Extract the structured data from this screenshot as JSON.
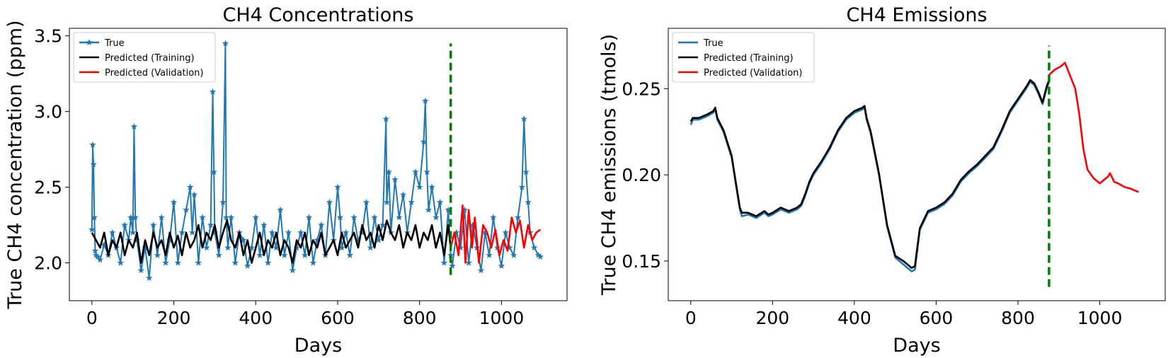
{
  "chart_data": [
    {
      "type": "line",
      "title": "CH4 Concentrations",
      "xlabel": "Days",
      "ylabel": "True CH4 concentration (ppm)",
      "xlim": [
        -55,
        1160
      ],
      "ylim": [
        1.75,
        3.55
      ],
      "xticks": [
        0,
        200,
        400,
        600,
        800,
        1000
      ],
      "yticks": [
        2.0,
        2.5,
        3.0,
        3.5
      ],
      "ytick_labels": [
        "2.0",
        "2.5",
        "3.0",
        "3.5"
      ],
      "legend_position": "upper-left",
      "split_day": 876,
      "split_line": {
        "y_from": 1.92,
        "y_to": 3.45,
        "color": "#007f00"
      },
      "series": [
        {
          "name": "True",
          "color": "#1f77b4",
          "marker": "star",
          "x": [
            0,
            2,
            4,
            6,
            8,
            10,
            14,
            20,
            30,
            40,
            50,
            60,
            70,
            80,
            90,
            95,
            100,
            103,
            106,
            110,
            120,
            130,
            140,
            150,
            160,
            170,
            180,
            190,
            200,
            210,
            220,
            230,
            240,
            245,
            250,
            260,
            270,
            280,
            290,
            295,
            298,
            300,
            310,
            320,
            326,
            328,
            332,
            340,
            350,
            360,
            370,
            380,
            390,
            400,
            410,
            420,
            430,
            440,
            450,
            460,
            470,
            480,
            490,
            500,
            510,
            520,
            530,
            540,
            550,
            560,
            570,
            580,
            590,
            600,
            606,
            610,
            620,
            630,
            640,
            650,
            660,
            670,
            680,
            690,
            700,
            710,
            718,
            720,
            725,
            730,
            740,
            750,
            760,
            770,
            780,
            790,
            800,
            810,
            814,
            818,
            822,
            830,
            840,
            850,
            860,
            870,
            876,
            880,
            890,
            900,
            910,
            920,
            930,
            940,
            950,
            960,
            970,
            980,
            990,
            1000,
            1010,
            1020,
            1030,
            1040,
            1050,
            1055,
            1060,
            1065,
            1070,
            1080,
            1090,
            1095
          ],
          "y": [
            2.22,
            2.78,
            2.65,
            2.3,
            2.08,
            2.05,
            2.04,
            2.02,
            2.12,
            2.05,
            2.2,
            2.1,
            2.0,
            2.25,
            2.15,
            2.3,
            2.2,
            2.9,
            2.3,
            2.15,
            1.95,
            2.1,
            1.9,
            2.25,
            2.05,
            2.3,
            2.0,
            2.15,
            2.4,
            2.0,
            2.2,
            2.35,
            2.5,
            2.2,
            2.45,
            2.0,
            2.3,
            2.1,
            2.25,
            3.13,
            2.6,
            2.2,
            2.05,
            2.4,
            3.45,
            2.3,
            2.1,
            2.3,
            2.0,
            2.2,
            2.15,
            1.98,
            2.1,
            2.3,
            2.05,
            2.25,
            2.0,
            2.2,
            2.1,
            2.35,
            2.05,
            2.2,
            1.95,
            2.1,
            2.2,
            2.05,
            2.3,
            2.0,
            2.15,
            2.25,
            2.05,
            2.4,
            2.15,
            2.5,
            2.3,
            2.1,
            2.2,
            2.05,
            2.3,
            2.15,
            2.2,
            2.4,
            2.1,
            2.3,
            2.15,
            2.25,
            2.95,
            2.4,
            2.6,
            2.2,
            2.55,
            2.3,
            2.45,
            2.2,
            2.4,
            2.6,
            2.5,
            2.8,
            3.07,
            2.6,
            2.35,
            2.5,
            2.3,
            2.4,
            2.0,
            2.35,
            2.05,
            1.98,
            2.2,
            2.1,
            2.35,
            2.0,
            2.25,
            2.1,
            1.95,
            2.2,
            2.05,
            2.3,
            2.1,
            1.98,
            2.2,
            2.1,
            2.05,
            2.3,
            2.5,
            2.95,
            2.6,
            2.4,
            2.2,
            2.1,
            2.05,
            2.04
          ]
        },
        {
          "name": "Predicted (Training)",
          "color": "#000000",
          "marker": "none",
          "x": [
            0,
            10,
            20,
            30,
            40,
            50,
            60,
            70,
            80,
            90,
            100,
            110,
            120,
            130,
            140,
            150,
            160,
            170,
            180,
            190,
            200,
            210,
            220,
            230,
            240,
            250,
            260,
            270,
            280,
            290,
            300,
            310,
            320,
            330,
            340,
            350,
            360,
            370,
            380,
            390,
            400,
            410,
            420,
            430,
            440,
            450,
            460,
            470,
            480,
            490,
            500,
            510,
            520,
            530,
            540,
            550,
            560,
            570,
            580,
            590,
            600,
            610,
            620,
            630,
            640,
            650,
            660,
            670,
            680,
            690,
            700,
            710,
            720,
            730,
            740,
            750,
            760,
            770,
            780,
            790,
            800,
            810,
            820,
            830,
            840,
            850,
            860,
            870,
            876
          ],
          "y": [
            2.2,
            2.15,
            2.1,
            2.2,
            2.05,
            2.15,
            2.1,
            2.2,
            2.05,
            2.15,
            2.1,
            2.2,
            2.0,
            2.15,
            2.05,
            2.2,
            2.1,
            2.15,
            2.05,
            2.2,
            2.1,
            2.18,
            2.05,
            2.2,
            2.1,
            2.15,
            2.25,
            2.1,
            2.2,
            2.15,
            2.25,
            2.1,
            2.2,
            2.28,
            2.15,
            2.1,
            2.2,
            2.05,
            2.15,
            2.0,
            2.1,
            2.2,
            2.05,
            2.15,
            2.1,
            2.2,
            2.05,
            2.15,
            2.1,
            2.0,
            2.15,
            2.1,
            2.2,
            2.05,
            2.15,
            2.1,
            2.2,
            2.05,
            2.1,
            2.15,
            2.05,
            2.2,
            2.1,
            2.15,
            2.2,
            2.1,
            2.25,
            2.15,
            2.2,
            2.1,
            2.25,
            2.15,
            2.28,
            2.2,
            2.15,
            2.25,
            2.1,
            2.2,
            2.15,
            2.25,
            2.1,
            2.2,
            2.15,
            2.25,
            2.1,
            2.2,
            2.05,
            2.25,
            2.1
          ]
        },
        {
          "name": "Predicted (Validation)",
          "color": "#ff0000",
          "marker": "none",
          "x": [
            876,
            885,
            895,
            905,
            912,
            920,
            928,
            935,
            945,
            955,
            965,
            975,
            985,
            995,
            1005,
            1015,
            1025,
            1035,
            1045,
            1055,
            1065,
            1075,
            1085,
            1095
          ],
          "y": [
            2.1,
            2.2,
            2.05,
            2.38,
            2.0,
            2.35,
            2.1,
            2.3,
            2.0,
            2.25,
            2.2,
            2.1,
            2.22,
            2.05,
            2.15,
            2.08,
            2.3,
            2.2,
            2.28,
            2.1,
            2.25,
            2.15,
            2.2,
            2.22
          ]
        }
      ]
    },
    {
      "type": "line",
      "title": "CH4 Emissions",
      "xlabel": "Days",
      "ylabel": "True CH4 emissions (tmols)",
      "xlim": [
        -55,
        1160
      ],
      "ylim": [
        0.127,
        0.285
      ],
      "xticks": [
        0,
        200,
        400,
        600,
        800,
        1000
      ],
      "yticks": [
        0.15,
        0.2,
        0.25
      ],
      "ytick_labels": [
        "0.15",
        "0.20",
        "0.25"
      ],
      "legend_position": "upper-left",
      "split_day": 876,
      "split_line": {
        "y_from": 0.135,
        "y_to": 0.275,
        "color": "#007f00"
      },
      "series": [
        {
          "name": "True",
          "color": "#1f77b4",
          "marker": "none",
          "x": [
            0,
            5,
            20,
            40,
            55,
            60,
            65,
            80,
            100,
            110,
            120,
            125,
            140,
            160,
            180,
            190,
            200,
            220,
            240,
            260,
            270,
            280,
            290,
            300,
            320,
            340,
            360,
            380,
            400,
            420,
            425,
            430,
            440,
            460,
            480,
            500,
            520,
            530,
            540,
            548,
            560,
            580,
            600,
            620,
            640,
            660,
            680,
            700,
            720,
            740,
            760,
            780,
            800,
            820,
            830,
            840,
            850,
            860,
            870,
            876
          ],
          "y": [
            0.229,
            0.232,
            0.232,
            0.234,
            0.236,
            0.238,
            0.232,
            0.225,
            0.21,
            0.195,
            0.18,
            0.176,
            0.177,
            0.175,
            0.178,
            0.176,
            0.177,
            0.18,
            0.178,
            0.18,
            0.182,
            0.188,
            0.195,
            0.2,
            0.207,
            0.215,
            0.225,
            0.232,
            0.236,
            0.238,
            0.239,
            0.232,
            0.224,
            0.2,
            0.17,
            0.152,
            0.148,
            0.146,
            0.144,
            0.145,
            0.168,
            0.178,
            0.18,
            0.183,
            0.188,
            0.196,
            0.201,
            0.205,
            0.21,
            0.215,
            0.225,
            0.236,
            0.243,
            0.25,
            0.254,
            0.252,
            0.247,
            0.241,
            0.25,
            0.254
          ]
        },
        {
          "name": "Predicted (Training)",
          "color": "#000000",
          "marker": "none",
          "x": [
            0,
            5,
            20,
            40,
            55,
            60,
            65,
            80,
            100,
            110,
            120,
            125,
            140,
            160,
            180,
            190,
            200,
            220,
            240,
            260,
            270,
            280,
            290,
            300,
            320,
            340,
            360,
            380,
            400,
            420,
            425,
            430,
            440,
            460,
            480,
            500,
            520,
            530,
            540,
            548,
            560,
            580,
            600,
            620,
            640,
            660,
            680,
            700,
            720,
            740,
            760,
            780,
            800,
            820,
            830,
            840,
            850,
            860,
            870,
            876
          ],
          "y": [
            0.231,
            0.233,
            0.233,
            0.235,
            0.237,
            0.239,
            0.233,
            0.226,
            0.211,
            0.196,
            0.181,
            0.178,
            0.178,
            0.176,
            0.179,
            0.177,
            0.178,
            0.181,
            0.179,
            0.181,
            0.183,
            0.189,
            0.196,
            0.201,
            0.208,
            0.216,
            0.226,
            0.233,
            0.237,
            0.239,
            0.24,
            0.233,
            0.225,
            0.201,
            0.171,
            0.153,
            0.15,
            0.148,
            0.146,
            0.147,
            0.169,
            0.179,
            0.181,
            0.184,
            0.189,
            0.197,
            0.202,
            0.206,
            0.211,
            0.216,
            0.226,
            0.237,
            0.244,
            0.251,
            0.255,
            0.253,
            0.248,
            0.242,
            0.251,
            0.255
          ]
        },
        {
          "name": "Predicted (Validation)",
          "color": "#ff0000",
          "marker": "none",
          "x": [
            876,
            890,
            905,
            915,
            920,
            930,
            940,
            950,
            960,
            970,
            985,
            1000,
            1010,
            1020,
            1025,
            1035,
            1045,
            1060,
            1075,
            1095
          ],
          "y": [
            0.258,
            0.261,
            0.263,
            0.265,
            0.262,
            0.256,
            0.25,
            0.235,
            0.215,
            0.203,
            0.198,
            0.195,
            0.197,
            0.199,
            0.201,
            0.196,
            0.195,
            0.193,
            0.192,
            0.19
          ]
        }
      ]
    }
  ]
}
